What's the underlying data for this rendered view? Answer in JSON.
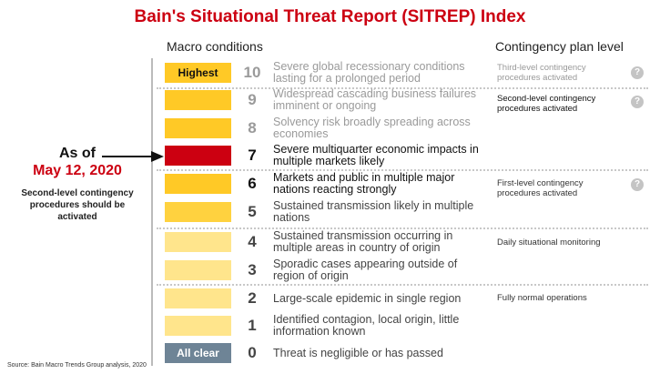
{
  "title": "Bain's Situational Threat Report (SITREP) Index",
  "headers": {
    "macro": "Macro conditions",
    "contingency": "Contingency plan level"
  },
  "levels": [
    {
      "n": "10",
      "label": "Highest",
      "desc": "Severe global recessionary conditions lasting for a prolonged period",
      "color": "#ffc926",
      "text": "#9a9a9a"
    },
    {
      "n": "9",
      "label": "",
      "desc": "Widespread cascading business failures imminent or ongoing",
      "color": "#ffc926",
      "text": "#9a9a9a"
    },
    {
      "n": "8",
      "label": "",
      "desc": "Solvency risk broadly spreading across economies",
      "color": "#ffc926",
      "text": "#9a9a9a"
    },
    {
      "n": "7",
      "label": "",
      "desc": "Severe multiquarter economic impacts in multiple markets likely",
      "color": "#cc0011",
      "text": "#111"
    },
    {
      "n": "6",
      "label": "",
      "desc": "Markets and public in multiple major nations reacting strongly",
      "color": "#ffc926",
      "text": "#111"
    },
    {
      "n": "5",
      "label": "",
      "desc": "Sustained transmission likely in multiple nations",
      "color": "#ffd23f",
      "text": "#444"
    },
    {
      "n": "4",
      "label": "",
      "desc": "Sustained transmission occurring in multiple areas in country of origin",
      "color": "#ffe58c",
      "text": "#444"
    },
    {
      "n": "3",
      "label": "",
      "desc": "Sporadic cases appearing outside of region of origin",
      "color": "#ffe58c",
      "text": "#444"
    },
    {
      "n": "2",
      "label": "",
      "desc": "Large-scale epidemic in single region",
      "color": "#ffe58c",
      "text": "#444"
    },
    {
      "n": "1",
      "label": "",
      "desc": "Identified contagion, local origin, little information known",
      "color": "#ffe58c",
      "text": "#444"
    },
    {
      "n": "0",
      "label": "All clear",
      "desc": "Threat is negligible or has passed",
      "color": "#6e8496",
      "text": "#444"
    }
  ],
  "contingency": [
    {
      "text": "Third-level contingency procedures activated",
      "help": "?"
    },
    {
      "text": "Second-level contingency procedures activated",
      "help": "?"
    },
    {
      "text": "First-level contingency procedures activated",
      "help": "?"
    },
    {
      "text": "Daily situational monitoring"
    },
    {
      "text": "Fully normal operations"
    }
  ],
  "current": {
    "as_of": "As of",
    "date": "May 12, 2020",
    "note": "Second-level contingency procedures should be activated"
  },
  "source": "Source: Bain Macro Trends Group analysis, 2020"
}
